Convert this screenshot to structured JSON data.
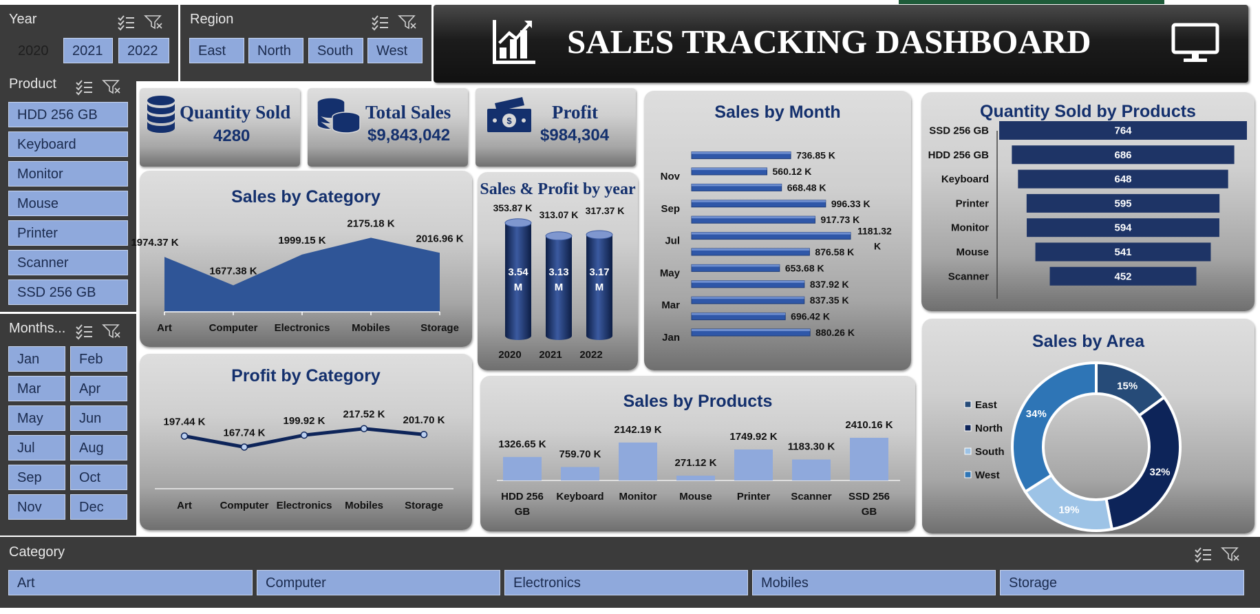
{
  "header": {
    "title": "SALES TRACKING DASHBOARD",
    "chart_icon": "bar-chart-icon",
    "monitor_icon": "monitor-icon"
  },
  "slicers": {
    "year": {
      "title": "Year",
      "items": [
        {
          "label": "2020",
          "selected": false
        },
        {
          "label": "2021",
          "selected": true
        },
        {
          "label": "2022",
          "selected": true
        }
      ]
    },
    "region": {
      "title": "Region",
      "items": [
        "East",
        "North",
        "South",
        "West"
      ]
    },
    "product": {
      "title": "Product",
      "items": [
        "HDD 256 GB",
        "Keyboard",
        "Monitor",
        "Mouse",
        "Printer",
        "Scanner",
        "SSD 256 GB"
      ]
    },
    "months": {
      "title": "Months...",
      "items": [
        "Jan",
        "Feb",
        "Mar",
        "Apr",
        "May",
        "Jun",
        "Jul",
        "Aug",
        "Sep",
        "Oct",
        "Nov",
        "Dec"
      ]
    },
    "category": {
      "title": "Category",
      "items": [
        "Art",
        "Computer",
        "Electronics",
        "Mobiles",
        "Storage"
      ]
    }
  },
  "kpis": {
    "quantity": {
      "label": "Quantity Sold",
      "value": "4280",
      "icon": "database-icon"
    },
    "sales": {
      "label": "Total Sales",
      "value": "$9,843,042",
      "icon": "coins-icon"
    },
    "profit": {
      "label": "Profit",
      "value": "$984,304",
      "icon": "cash-icon"
    }
  },
  "colors": {
    "navy": "#14306d",
    "bar_blue": "#1e3466",
    "area_blue": "#2f5597",
    "light_blue": "#8fa9dc",
    "slicer_bg": "#3b3b3b"
  },
  "chart_data": [
    {
      "id": "sales_by_category",
      "type": "area",
      "title": "Sales by Category",
      "categories": [
        "Art",
        "Computer",
        "Electronics",
        "Mobiles",
        "Storage"
      ],
      "values": [
        1974.37,
        1677.38,
        1999.15,
        2175.18,
        2016.96
      ],
      "labels": [
        "1974.37 K",
        "1677.38 K",
        "1999.15 K",
        "2175.18 K",
        "2016.96 K"
      ],
      "ylim": [
        0,
        2300
      ],
      "grid": false
    },
    {
      "id": "profit_by_category",
      "type": "line",
      "title": "Profit by Category",
      "categories": [
        "Art",
        "Computer",
        "Electronics",
        "Mobiles",
        "Storage"
      ],
      "values": [
        197.44,
        167.74,
        199.92,
        217.52,
        201.7
      ],
      "labels": [
        "197.44 K",
        "167.74 K",
        "199.92 K",
        "217.52 K",
        "201.70 K"
      ],
      "ylim": [
        0,
        230
      ],
      "grid": false
    },
    {
      "id": "sales_profit_by_year",
      "type": "bar",
      "title": "Sales & Profit by year",
      "categories": [
        "2020",
        "2021",
        "2022"
      ],
      "series": [
        {
          "values": [
            3.54,
            3.13,
            3.17
          ],
          "labels": [
            "3.54 M",
            "3.13 M",
            "3.17 M"
          ]
        },
        {
          "values": [
            353.87,
            313.07,
            317.37
          ],
          "labels": [
            "353.87 K",
            "313.07 K",
            "317.37 K"
          ]
        }
      ],
      "ylim": [
        0,
        3.6
      ]
    },
    {
      "id": "sales_by_month",
      "type": "bar",
      "orientation": "horizontal",
      "title": "Sales by Month",
      "categories": [
        "Jan",
        "Feb",
        "Mar",
        "Apr",
        "May",
        "Jun",
        "Jul",
        "Aug",
        "Sep",
        "Oct",
        "Nov",
        "Dec"
      ],
      "tick_labels": [
        "Jan",
        "Mar",
        "May",
        "Jul",
        "Sep",
        "Nov"
      ],
      "values": [
        880.26,
        696.42,
        837.35,
        837.92,
        653.68,
        876.58,
        1181.32,
        917.73,
        996.33,
        668.48,
        560.12,
        736.85
      ],
      "labels": [
        "880.26 K",
        "696.42 K",
        "837.35 K",
        "837.92 K",
        "653.68 K",
        "876.58 K",
        "1181.32 K",
        "917.73 K",
        "996.33 K",
        "668.48 K",
        "560.12 K",
        "736.85 K"
      ],
      "xlim": [
        0,
        1181.32
      ]
    },
    {
      "id": "quantity_by_products",
      "type": "bar",
      "orientation": "horizontal",
      "title": "Quantity Sold by Products",
      "categories": [
        "SSD 256 GB",
        "HDD 256 GB",
        "Keyboard",
        "Printer",
        "Monitor",
        "Mouse",
        "Scanner"
      ],
      "values": [
        764,
        686,
        648,
        595,
        594,
        541,
        452
      ],
      "labels": [
        "764",
        "686",
        "648",
        "595",
        "594",
        "541",
        "452"
      ],
      "xlim": [
        0,
        764
      ]
    },
    {
      "id": "sales_by_products",
      "type": "bar",
      "title": "Sales by Products",
      "categories": [
        "HDD 256 GB",
        "Keyboard",
        "Monitor",
        "Mouse",
        "Printer",
        "Scanner",
        "SSD 256 GB"
      ],
      "values": [
        1326.65,
        759.7,
        2142.19,
        271.12,
        1749.92,
        1183.3,
        2410.16
      ],
      "labels": [
        "1326.65 K",
        "759.70 K",
        "2142.19 K",
        "271.12 K",
        "1749.92 K",
        "1183.30 K",
        "2410.16 K"
      ],
      "ylim": [
        0,
        2410.16
      ]
    },
    {
      "id": "sales_by_area",
      "type": "pie",
      "donut": true,
      "title": "Sales by Area",
      "categories": [
        "East",
        "North",
        "South",
        "West"
      ],
      "values": [
        15,
        32,
        19,
        34
      ],
      "labels": [
        "15%",
        "32%",
        "19%",
        "34%"
      ],
      "colors": [
        "#264b78",
        "#0d2459",
        "#9dc3e6",
        "#2e75b6"
      ],
      "legend": "left"
    }
  ]
}
